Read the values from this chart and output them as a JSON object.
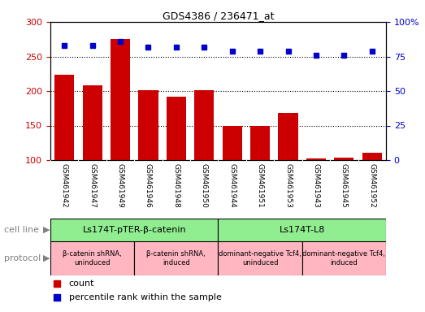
{
  "title": "GDS4386 / 236471_at",
  "samples": [
    "GSM461942",
    "GSM461947",
    "GSM461949",
    "GSM461946",
    "GSM461948",
    "GSM461950",
    "GSM461944",
    "GSM461951",
    "GSM461953",
    "GSM461943",
    "GSM461945",
    "GSM461952"
  ],
  "bar_values": [
    224,
    208,
    275,
    201,
    192,
    201,
    150,
    150,
    168,
    102,
    103,
    111
  ],
  "dot_values": [
    83,
    83,
    86,
    82,
    82,
    82,
    79,
    79,
    79,
    76,
    76,
    79
  ],
  "ylim_left": [
    100,
    300
  ],
  "ylim_right": [
    0,
    100
  ],
  "yticks_left": [
    100,
    150,
    200,
    250,
    300
  ],
  "yticks_right": [
    0,
    25,
    50,
    75,
    100
  ],
  "grid_values": [
    150,
    200,
    250
  ],
  "cell_line_groups": [
    {
      "label": "Ls174T-pTER-β-catenin",
      "start": 0,
      "end": 6,
      "color": "#90EE90"
    },
    {
      "label": "Ls174T-L8",
      "start": 6,
      "end": 12,
      "color": "#90EE90"
    }
  ],
  "protocol_groups": [
    {
      "label": "β-catenin shRNA,\nuninduced",
      "start": 0,
      "end": 3,
      "color": "#FFB6C1"
    },
    {
      "label": "β-catenin shRNA,\ninduced",
      "start": 3,
      "end": 6,
      "color": "#FFB6C1"
    },
    {
      "label": "dominant-negative Tcf4,\nuninduced",
      "start": 6,
      "end": 9,
      "color": "#FFB6C1"
    },
    {
      "label": "dominant-negative Tcf4,\ninduced",
      "start": 9,
      "end": 12,
      "color": "#FFB6C1"
    }
  ],
  "bar_color": "#CC0000",
  "dot_color": "#0000CC",
  "left_axis_color": "#CC0000",
  "right_axis_color": "#0000CC",
  "bg_color": "#FFFFFF",
  "tick_area_color": "#C8C8C8",
  "cell_line_color": "#90EE90",
  "protocol_color": "#FFB6C1",
  "label_text_color": "#808080",
  "arrow_color": "#808080"
}
